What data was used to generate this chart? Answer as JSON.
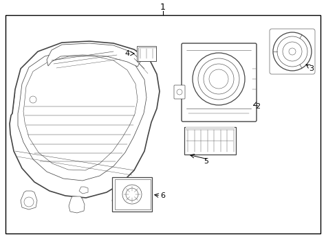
{
  "background_color": "#ffffff",
  "line_color": "#444444",
  "label_color": "#000000",
  "fig_width": 4.74,
  "fig_height": 3.48,
  "dpi": 100
}
